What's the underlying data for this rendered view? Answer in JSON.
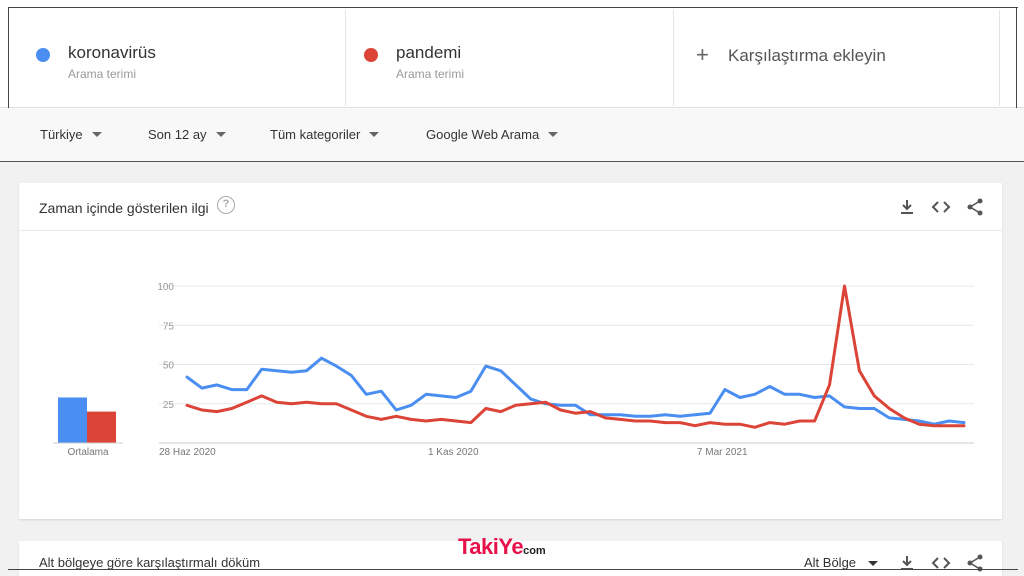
{
  "terms": [
    {
      "name": "koronavirüs",
      "sub": "Arama terimi",
      "color": "#4a8ef1"
    },
    {
      "name": "pandemi",
      "sub": "Arama terimi",
      "color": "#db4437"
    }
  ],
  "add_compare": {
    "plus": "+",
    "label": "Karşılaştırma ekleyin"
  },
  "filters": {
    "region": "Türkiye",
    "period": "Son 12 ay",
    "category": "Tüm kategoriler",
    "search_type": "Google Web Arama"
  },
  "card": {
    "title": "Zaman içinde gösterilen ilgi",
    "help": "?"
  },
  "card2": {
    "title": "Alt bölgeye göre karşılaştırmalı döküm",
    "region_select": "Alt Bölge"
  },
  "watermark": {
    "brand": "TakiYe",
    "suffix": "com"
  },
  "chart_data": {
    "type": "line",
    "ylim": [
      0,
      100
    ],
    "yticks": [
      25,
      50,
      75,
      100
    ],
    "x_labels": [
      "28 Haz 2020",
      "1 Kas 2020",
      "7 Mar 2021"
    ],
    "x_label_weeks": [
      0,
      18,
      36
    ],
    "average_label": "Ortalama",
    "averages": [
      {
        "name": "koronavirüs",
        "value": 29,
        "color": "#4a8ef1"
      },
      {
        "name": "pandemi",
        "value": 20,
        "color": "#db4437"
      }
    ],
    "series": [
      {
        "name": "koronavirüs",
        "color": "#4a8ef1",
        "values": [
          42,
          35,
          37,
          34,
          34,
          47,
          46,
          45,
          46,
          54,
          49,
          43,
          31,
          33,
          21,
          24,
          31,
          30,
          29,
          33,
          49,
          46,
          37,
          28,
          25,
          24,
          24,
          18,
          18,
          18,
          17,
          17,
          18,
          17,
          18,
          19,
          34,
          29,
          31,
          36,
          31,
          31,
          29,
          30,
          23,
          22,
          22,
          16,
          15,
          14,
          12,
          14,
          13
        ]
      },
      {
        "name": "pandemi",
        "color": "#db4437",
        "values": [
          24,
          21,
          20,
          22,
          26,
          30,
          26,
          25,
          26,
          25,
          25,
          21,
          17,
          15,
          17,
          15,
          14,
          15,
          14,
          13,
          22,
          20,
          24,
          25,
          26,
          21,
          19,
          20,
          16,
          15,
          14,
          14,
          13,
          13,
          11,
          13,
          12,
          12,
          10,
          13,
          12,
          14,
          14,
          37,
          100,
          46,
          30,
          22,
          16,
          12,
          11,
          11,
          11
        ]
      }
    ]
  }
}
